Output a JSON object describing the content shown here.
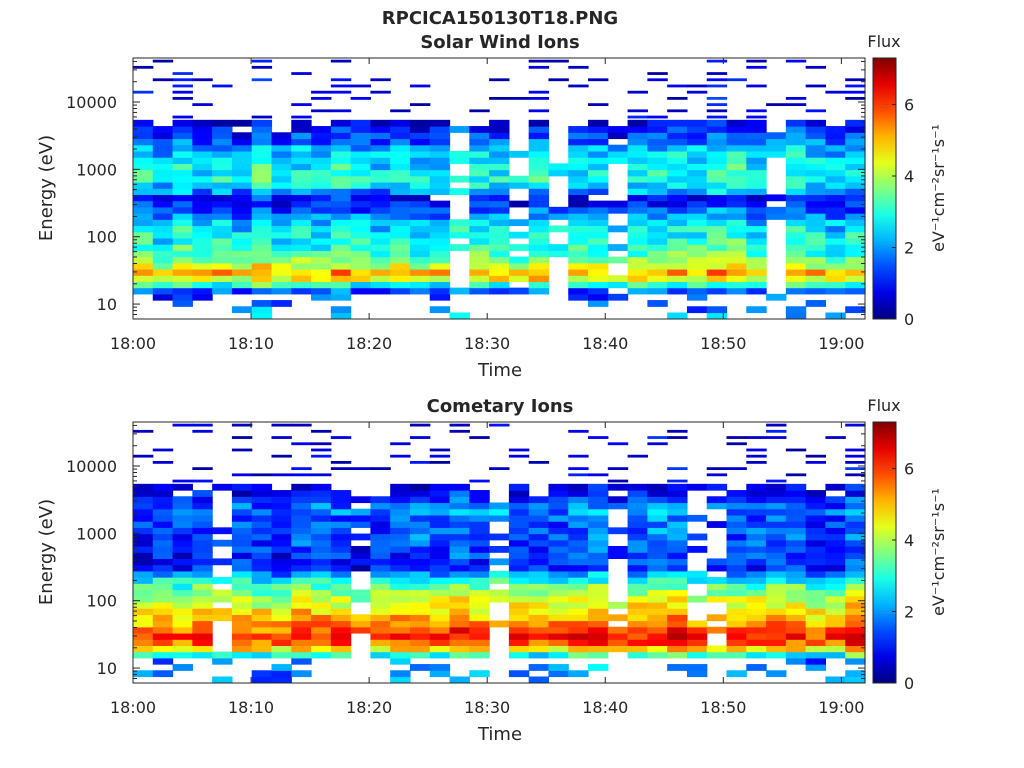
{
  "figure": {
    "title": "RPCICA150130T18.PNG"
  },
  "colors": {
    "colormap": "jet",
    "axis": "#262626",
    "background": "#ffffff"
  },
  "chart_data": [
    {
      "type": "heatmap",
      "title": "Solar Wind Ions",
      "xlabel": "Time",
      "ylabel": "Energy (eV)",
      "y_scale": "log",
      "ylim": [
        6,
        45000
      ],
      "xlim": [
        "18:00",
        "19:02"
      ],
      "x_ticks": [
        "18:00",
        "18:10",
        "18:20",
        "18:30",
        "18:40",
        "18:50",
        "19:00"
      ],
      "y_ticks": [
        "10",
        "100",
        "1000",
        "10000"
      ],
      "colorbar": {
        "title": "Flux",
        "label": "eV⁻¹cm⁻²sr⁻¹s⁻¹",
        "range": [
          0,
          7.3
        ],
        "ticks": [
          "0",
          "2",
          "4",
          "6"
        ]
      },
      "profile": [
        {
          "e": 7,
          "v": 1.8
        },
        {
          "e": 16,
          "v": 1.6
        },
        {
          "e": 20,
          "v": 3.2
        },
        {
          "e": 25,
          "v": 5.0
        },
        {
          "e": 30,
          "v": 5.3
        },
        {
          "e": 36,
          "v": 4.4
        },
        {
          "e": 45,
          "v": 3.7
        },
        {
          "e": 60,
          "v": 3.2
        },
        {
          "e": 80,
          "v": 3.0
        },
        {
          "e": 110,
          "v": 2.8
        },
        {
          "e": 150,
          "v": 2.6
        },
        {
          "e": 200,
          "v": 2.0
        },
        {
          "e": 280,
          "v": 1.2
        },
        {
          "e": 380,
          "v": 0.9
        },
        {
          "e": 500,
          "v": 2.4
        },
        {
          "e": 700,
          "v": 2.9
        },
        {
          "e": 1000,
          "v": 2.8
        },
        {
          "e": 1500,
          "v": 2.6
        },
        {
          "e": 2000,
          "v": 2.3
        },
        {
          "e": 3000,
          "v": 1.5
        },
        {
          "e": 4200,
          "v": 0.9
        },
        {
          "e": 6000,
          "v": 0.5
        },
        {
          "e": 10000,
          "v": 0.45
        },
        {
          "e": 20000,
          "v": 0.45
        },
        {
          "e": 40000,
          "v": 0.4
        }
      ]
    },
    {
      "type": "heatmap",
      "title": "Cometary Ions",
      "xlabel": "Time",
      "ylabel": "Energy (eV)",
      "y_scale": "log",
      "ylim": [
        6,
        45000
      ],
      "xlim": [
        "18:00",
        "19:02"
      ],
      "x_ticks": [
        "18:00",
        "18:10",
        "18:20",
        "18:30",
        "18:40",
        "18:50",
        "19:00"
      ],
      "y_ticks": [
        "10",
        "100",
        "1000",
        "10000"
      ],
      "colorbar": {
        "title": "Flux",
        "label": "eV⁻¹cm⁻²sr⁻¹s⁻¹",
        "range": [
          0,
          7.3
        ],
        "ticks": [
          "0",
          "2",
          "4",
          "6"
        ]
      },
      "profile": [
        {
          "e": 7,
          "v": 2.0
        },
        {
          "e": 13,
          "v": 1.8
        },
        {
          "e": 17,
          "v": 3.5
        },
        {
          "e": 20,
          "v": 5.2
        },
        {
          "e": 25,
          "v": 6.0
        },
        {
          "e": 30,
          "v": 6.2
        },
        {
          "e": 40,
          "v": 5.6
        },
        {
          "e": 55,
          "v": 5.1
        },
        {
          "e": 80,
          "v": 4.6
        },
        {
          "e": 110,
          "v": 4.1
        },
        {
          "e": 160,
          "v": 3.4
        },
        {
          "e": 220,
          "v": 2.6
        },
        {
          "e": 300,
          "v": 1.2
        },
        {
          "e": 450,
          "v": 1.2
        },
        {
          "e": 700,
          "v": 1.5
        },
        {
          "e": 1000,
          "v": 1.6
        },
        {
          "e": 1500,
          "v": 1.4
        },
        {
          "e": 2000,
          "v": 1.9
        },
        {
          "e": 2600,
          "v": 1.6
        },
        {
          "e": 3500,
          "v": 1.0
        },
        {
          "e": 4500,
          "v": 0.7
        },
        {
          "e": 7000,
          "v": 0.4
        },
        {
          "e": 12000,
          "v": 0.4
        }
      ]
    }
  ]
}
